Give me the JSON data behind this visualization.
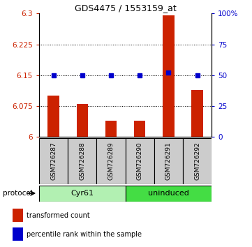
{
  "title": "GDS4475 / 1553159_at",
  "samples": [
    "GSM726287",
    "GSM726288",
    "GSM726289",
    "GSM726290",
    "GSM726291",
    "GSM726292"
  ],
  "red_values": [
    6.1,
    6.08,
    6.04,
    6.04,
    6.295,
    6.115
  ],
  "blue_values": [
    50,
    50,
    50,
    50,
    52,
    50
  ],
  "ylim_left": [
    6.0,
    6.3
  ],
  "ylim_right": [
    0,
    100
  ],
  "yticks_left": [
    6.0,
    6.075,
    6.15,
    6.225,
    6.3
  ],
  "yticks_right": [
    0,
    25,
    50,
    75,
    100
  ],
  "ytick_labels_left": [
    "6",
    "6.075",
    "6.15",
    "6.225",
    "6.3"
  ],
  "ytick_labels_right": [
    "0",
    "25",
    "50",
    "75",
    "100%"
  ],
  "hlines": [
    6.075,
    6.15,
    6.225
  ],
  "groups": [
    {
      "label": "Cyr61",
      "start": 0,
      "end": 3,
      "color": "#b2f0b2"
    },
    {
      "label": "uninduced",
      "start": 3,
      "end": 6,
      "color": "#44dd44"
    }
  ],
  "protocol_label": "protocol",
  "legend_red": "transformed count",
  "legend_blue": "percentile rank within the sample",
  "bar_color": "#cc2200",
  "dot_color": "#0000cc",
  "background_color": "#ffffff",
  "sample_box_color": "#cccccc"
}
